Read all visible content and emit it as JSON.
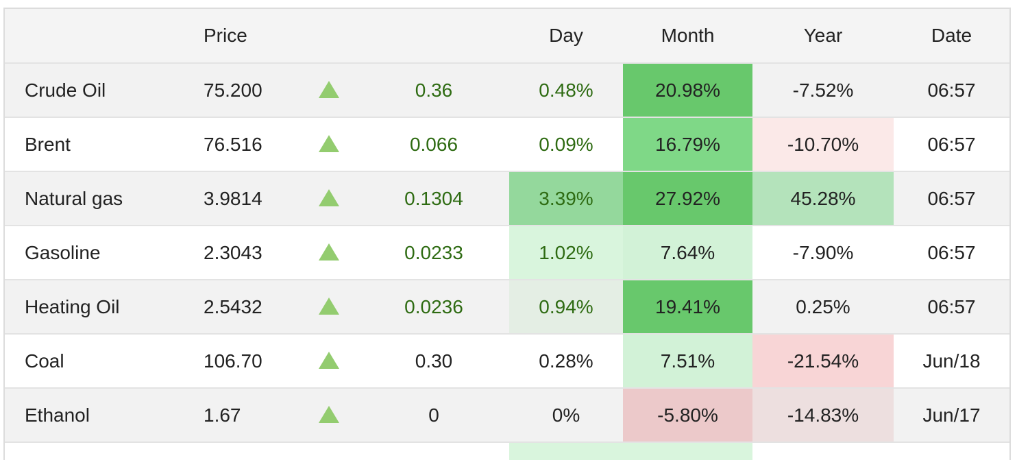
{
  "headers": {
    "name": "",
    "price": "Price",
    "arrow": "",
    "change": "",
    "day": "Day",
    "month": "Month",
    "year": "Year",
    "date": "Date"
  },
  "colors": {
    "positive_text": "#2e6b12",
    "up_arrow": "#93cc6f",
    "green_strong": "#68c86c",
    "green_medium": "#7fd887",
    "green_soft": "#b4e3bb",
    "green_pale": "#d2f2d7",
    "red_pale": "#fbe6e6",
    "red_soft": "#f8d5d6"
  },
  "rows": [
    {
      "name": "Crude Oil",
      "price": "75.200",
      "direction": "up",
      "change": "0.36",
      "day": "0.48%",
      "month": "20.98%",
      "year": "-7.52%",
      "date": "06:57",
      "change_style": "pos",
      "day_style": "pos",
      "day_bg": "",
      "month_bg": "#68c86c",
      "year_bg": ""
    },
    {
      "name": "Brent",
      "price": "76.516",
      "direction": "up",
      "change": "0.066",
      "day": "0.09%",
      "month": "16.79%",
      "year": "-10.70%",
      "date": "06:57",
      "change_style": "pos",
      "day_style": "pos",
      "day_bg": "",
      "month_bg": "#7fd887",
      "year_bg": "#fbe9e8"
    },
    {
      "name": "Natural gas",
      "price": "3.9814",
      "direction": "up",
      "change": "0.1304",
      "day": "3.39%",
      "month": "27.92%",
      "year": "45.28%",
      "date": "06:57",
      "change_style": "pos",
      "day_style": "pos",
      "day_bg": "#94d89c",
      "month_bg": "#68c86c",
      "year_bg": "#b4e3bb"
    },
    {
      "name": "Gasoline",
      "price": "2.3043",
      "direction": "up",
      "change": "0.0233",
      "day": "1.02%",
      "month": "7.64%",
      "year": "-7.90%",
      "date": "06:57",
      "change_style": "pos",
      "day_style": "pos",
      "day_bg": "#d9f5dd",
      "month_bg": "#d2f2d7",
      "year_bg": ""
    },
    {
      "name": "Heating Oil",
      "price": "2.5432",
      "direction": "up",
      "change": "0.0236",
      "day": "0.94%",
      "month": "19.41%",
      "year": "0.25%",
      "date": "06:57",
      "change_style": "pos",
      "day_style": "pos",
      "day_bg": "#e4eee4",
      "month_bg": "#68c86c",
      "year_bg": ""
    },
    {
      "name": "Coal",
      "price": "106.70",
      "direction": "up",
      "change": "0.30",
      "day": "0.28%",
      "month": "7.51%",
      "year": "-21.54%",
      "date": "Jun/18",
      "change_style": "neutral",
      "day_style": "neutral",
      "day_bg": "",
      "month_bg": "#d2f2d7",
      "year_bg": "#f8d5d6"
    },
    {
      "name": "Ethanol",
      "price": "1.67",
      "direction": "up",
      "change": "0",
      "day": "0%",
      "month": "-5.80%",
      "year": "-14.83%",
      "date": "Jun/17",
      "change_style": "neutral",
      "day_style": "neutral",
      "day_bg": "",
      "month_bg": "#ecc9ca",
      "year_bg": "#eddfdf"
    }
  ],
  "partial_row": {
    "day_bg": "#d9f5dd",
    "month_bg": "#d9f5dd"
  }
}
